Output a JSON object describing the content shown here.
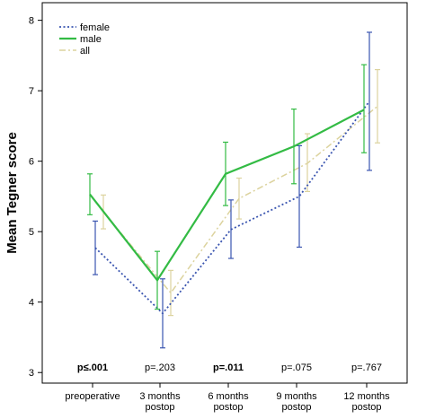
{
  "chart_data": {
    "type": "line",
    "title": "",
    "xlabel": "",
    "ylabel": "Mean Tegner score",
    "ylim": [
      2.85,
      8.25
    ],
    "yticks": [
      3,
      4,
      5,
      6,
      7,
      8
    ],
    "grid": false,
    "legend_position": "top-left",
    "categories": [
      [
        "preoperative"
      ],
      [
        "3 months",
        "postop"
      ],
      [
        "6 months",
        "postop"
      ],
      [
        "9 months",
        "postop"
      ],
      [
        "12 months",
        "postop"
      ]
    ],
    "series": [
      {
        "name": "female",
        "color": "#3a55b0",
        "style": "dotted",
        "values": [
          4.77,
          3.84,
          5.03,
          5.5,
          6.85
        ],
        "error_low": [
          4.39,
          3.35,
          4.62,
          4.78,
          5.87
        ],
        "error_high": [
          5.15,
          4.33,
          5.45,
          6.22,
          7.83
        ]
      },
      {
        "name": "male",
        "color": "#33bb44",
        "style": "solid",
        "values": [
          5.53,
          4.31,
          5.82,
          6.21,
          6.73
        ],
        "error_low": [
          5.24,
          3.9,
          5.37,
          5.68,
          6.12
        ],
        "error_high": [
          5.82,
          4.72,
          6.27,
          6.74,
          7.37
        ]
      },
      {
        "name": "all",
        "color": "#dcd39e",
        "style": "dashdot",
        "values": [
          5.28,
          4.13,
          5.47,
          5.97,
          6.78
        ],
        "error_low": [
          5.04,
          3.81,
          5.18,
          5.57,
          6.26
        ],
        "error_high": [
          5.52,
          4.45,
          5.76,
          6.39,
          7.3
        ]
      }
    ],
    "annotations": [
      {
        "text": "p≤.001",
        "bold": true
      },
      {
        "text": "p=.203",
        "bold": false
      },
      {
        "text": "p=.011",
        "bold": true
      },
      {
        "text": "p=.075",
        "bold": false
      },
      {
        "text": "p=.767",
        "bold": false
      }
    ]
  }
}
